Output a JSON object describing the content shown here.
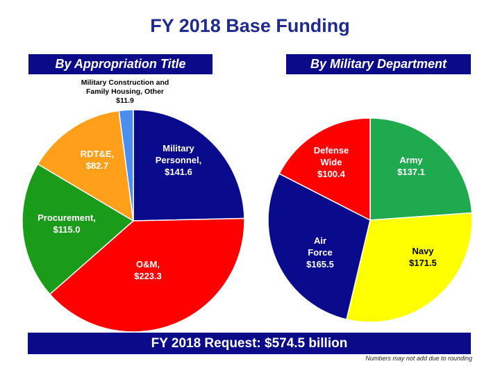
{
  "header": {
    "title": "FY 2018 Base Funding"
  },
  "footer": {
    "request": "FY 2018 Request:  $574.5 billion",
    "note": "Numbers may not add due to rounding"
  },
  "chart_data": [
    {
      "type": "pie",
      "title": "By Appropriation Title",
      "slices": [
        {
          "label": [
            "Military",
            "Personnel,",
            "$141.6"
          ],
          "value": 141.6,
          "color": "#0a0a8c"
        },
        {
          "label": [
            "O&M,",
            "$223.3"
          ],
          "value": 223.3,
          "color": "#ff0000"
        },
        {
          "label": [
            "Procurement,",
            "$115.0"
          ],
          "value": 115.0,
          "color": "#1a9b1a"
        },
        {
          "label": [
            "RDT&E,",
            "$82.7"
          ],
          "value": 82.7,
          "color": "#ff9f1a"
        },
        {
          "label": [
            "Military Construction and",
            "Family Housing, Other",
            "$11.9"
          ],
          "value": 11.9,
          "color": "#4a8ff0"
        }
      ]
    },
    {
      "type": "pie",
      "title": "By Military Department",
      "slices": [
        {
          "label": [
            "Army",
            "$137.1"
          ],
          "value": 137.1,
          "color": "#1faa4f"
        },
        {
          "label": [
            "Navy",
            "$171.5"
          ],
          "value": 171.5,
          "color": "#ffff00"
        },
        {
          "label": [
            "Air",
            "Force",
            "$165.5"
          ],
          "value": 165.5,
          "color": "#0a0a8c"
        },
        {
          "label": [
            "Defense",
            "Wide",
            "$100.4"
          ],
          "value": 100.4,
          "color": "#ff0000"
        }
      ]
    }
  ]
}
